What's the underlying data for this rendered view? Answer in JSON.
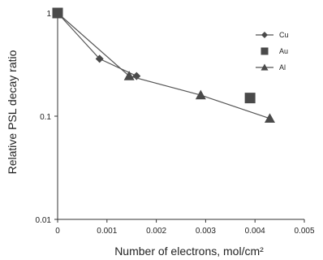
{
  "chart_data": {
    "type": "line",
    "title": "",
    "xlabel": "Number of electrons, mol/cm²",
    "ylabel": "Relative PSL decay ratio",
    "xlim": [
      0,
      0.005
    ],
    "ylim": [
      0.01,
      1
    ],
    "yscale": "log",
    "x_ticks": [
      0,
      0.001,
      0.002,
      0.003,
      0.004,
      0.005
    ],
    "x_tick_labels": [
      "0",
      "0.001",
      "0.002",
      "0.003",
      "0.004",
      "0.005"
    ],
    "y_ticks": [
      0.01,
      0.1,
      1
    ],
    "y_tick_labels": [
      "0.01",
      "0.1",
      "1"
    ],
    "grid": false,
    "legend_position": "top-right",
    "series": [
      {
        "name": "Cu",
        "marker": "diamond",
        "line": true,
        "x": [
          0,
          0.00085,
          0.0016
        ],
        "y": [
          1.0,
          0.36,
          0.245
        ]
      },
      {
        "name": "Au",
        "marker": "square",
        "line": false,
        "x": [
          0,
          0.0039
        ],
        "y": [
          1.0,
          0.15
        ]
      },
      {
        "name": "Al",
        "marker": "triangle",
        "line": true,
        "x": [
          0,
          0.00145,
          0.0029,
          0.0043
        ],
        "y": [
          1.0,
          0.245,
          0.16,
          0.095
        ]
      }
    ],
    "colors": {
      "markers": "#4a4a4a",
      "lines": "#555555",
      "axes": "#333333"
    }
  }
}
